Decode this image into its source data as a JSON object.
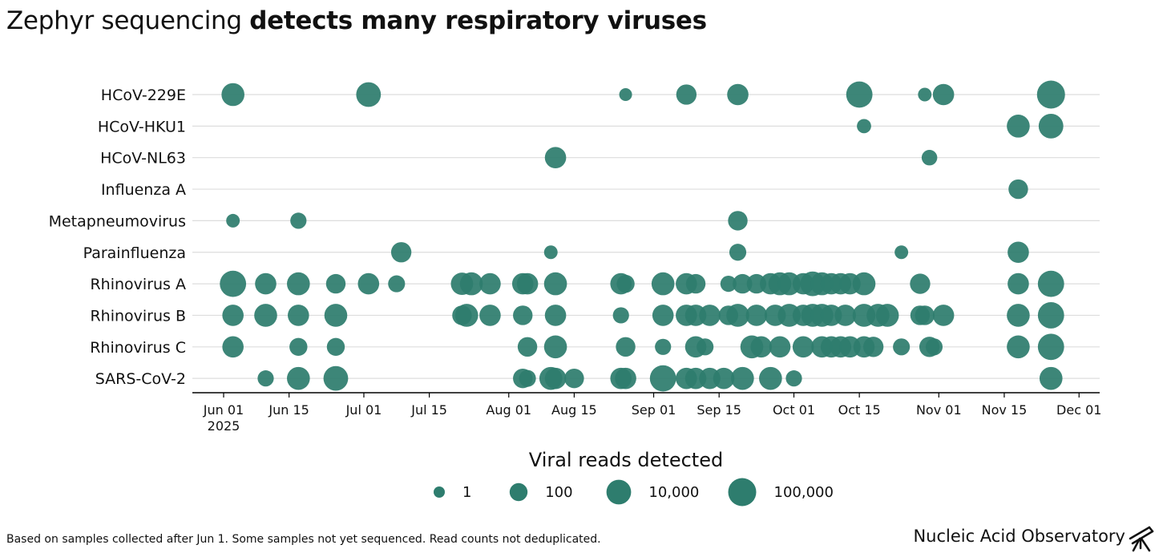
{
  "title": {
    "regular": "Zephyr sequencing",
    "bold": "detects many respiratory viruses"
  },
  "footnote": "Based on samples collected after Jun 1. Some samples not yet sequenced. Read counts not deduplicated.",
  "brand": "Nucleic Acid Observatory",
  "colors": {
    "dot": "#2e7d6e",
    "grid": "#dddddd",
    "axis": "#000000"
  },
  "chart_data": {
    "type": "scatter",
    "title": "Zephyr sequencing detects many respiratory viruses",
    "xlabel": "",
    "ylabel": "",
    "x_unit": "days since Jun 01 2025",
    "xlim": [
      -5,
      184
    ],
    "x_ticks": [
      {
        "day": 0,
        "label": "Jun 01",
        "sub": "2025"
      },
      {
        "day": 14,
        "label": "Jun 15"
      },
      {
        "day": 30,
        "label": "Jul 01"
      },
      {
        "day": 44,
        "label": "Jul 15"
      },
      {
        "day": 61,
        "label": "Aug 01"
      },
      {
        "day": 75,
        "label": "Aug 15"
      },
      {
        "day": 92,
        "label": "Sep 01"
      },
      {
        "day": 106,
        "label": "Sep 15"
      },
      {
        "day": 122,
        "label": "Oct 01"
      },
      {
        "day": 136,
        "label": "Oct 15"
      },
      {
        "day": 153,
        "label": "Nov 01"
      },
      {
        "day": 167,
        "label": "Nov 15"
      },
      {
        "day": 183,
        "label": "Dec 01"
      }
    ],
    "categories": [
      "HCoV-229E",
      "HCoV-HKU1",
      "HCoV-NL63",
      "Influenza A",
      "Metapneumovirus",
      "Parainfluenza",
      "Rhinovirus A",
      "Rhinovirus B",
      "Rhinovirus C",
      "SARS-CoV-2"
    ],
    "size_legend": {
      "title": "Viral reads detected",
      "entries": [
        {
          "label": "1",
          "value": 1
        },
        {
          "label": "100",
          "value": 100
        },
        {
          "label": "10,000",
          "value": 10000
        },
        {
          "label": "100,000",
          "value": 100000
        }
      ]
    },
    "series": [
      {
        "name": "HCoV-229E",
        "points": [
          [
            2,
            3000
          ],
          [
            31,
            10000
          ],
          [
            86,
            3
          ],
          [
            99,
            500
          ],
          [
            110,
            1000
          ],
          [
            136,
            30000
          ],
          [
            150,
            5
          ],
          [
            154,
            1000
          ],
          [
            177,
            100000
          ]
        ]
      },
      {
        "name": "HCoV-HKU1",
        "points": [
          [
            137,
            8
          ],
          [
            170,
            3000
          ],
          [
            177,
            10000
          ]
        ]
      },
      {
        "name": "HCoV-NL63",
        "points": [
          [
            71,
            1000
          ],
          [
            151,
            20
          ]
        ]
      },
      {
        "name": "Influenza A",
        "points": [
          [
            170,
            300
          ]
        ]
      },
      {
        "name": "Metapneumovirus",
        "points": [
          [
            2,
            5
          ],
          [
            16,
            30
          ],
          [
            110,
            300
          ]
        ]
      },
      {
        "name": "Parainfluenza",
        "points": [
          [
            38,
            500
          ],
          [
            70,
            5
          ],
          [
            110,
            50
          ],
          [
            145,
            5
          ],
          [
            170,
            1000
          ]
        ]
      },
      {
        "name": "Rhinovirus A",
        "points": [
          [
            2,
            30000
          ],
          [
            9,
            1000
          ],
          [
            16,
            3000
          ],
          [
            24,
            300
          ],
          [
            31,
            1000
          ],
          [
            37,
            50
          ],
          [
            51,
            2000
          ],
          [
            53,
            3000
          ],
          [
            57,
            1000
          ],
          [
            64,
            1000
          ],
          [
            65,
            1000
          ],
          [
            71,
            3000
          ],
          [
            85,
            1000
          ],
          [
            86,
            100
          ],
          [
            94,
            3000
          ],
          [
            99,
            1000
          ],
          [
            101,
            300
          ],
          [
            108,
            30
          ],
          [
            111,
            300
          ],
          [
            114,
            300
          ],
          [
            117,
            1000
          ],
          [
            119,
            3000
          ],
          [
            121,
            3000
          ],
          [
            124,
            1000
          ],
          [
            126,
            10000
          ],
          [
            128,
            3000
          ],
          [
            130,
            1000
          ],
          [
            132,
            1000
          ],
          [
            134,
            1000
          ],
          [
            137,
            3000
          ],
          [
            149,
            500
          ],
          [
            170,
            1000
          ],
          [
            177,
            30000
          ]
        ]
      },
      {
        "name": "Rhinovirus B",
        "points": [
          [
            2,
            1000
          ],
          [
            9,
            3000
          ],
          [
            16,
            1000
          ],
          [
            24,
            3000
          ],
          [
            51,
            300
          ],
          [
            52,
            3000
          ],
          [
            57,
            1000
          ],
          [
            64,
            300
          ],
          [
            71,
            1000
          ],
          [
            85,
            30
          ],
          [
            94,
            1000
          ],
          [
            99,
            1000
          ],
          [
            101,
            1000
          ],
          [
            104,
            1000
          ],
          [
            108,
            300
          ],
          [
            110,
            3000
          ],
          [
            114,
            1000
          ],
          [
            118,
            1000
          ],
          [
            121,
            3000
          ],
          [
            124,
            1000
          ],
          [
            126,
            3000
          ],
          [
            128,
            3000
          ],
          [
            130,
            1000
          ],
          [
            133,
            1000
          ],
          [
            137,
            3000
          ],
          [
            140,
            3000
          ],
          [
            142,
            3000
          ],
          [
            149,
            300
          ],
          [
            150,
            300
          ],
          [
            154,
            1000
          ],
          [
            170,
            3000
          ],
          [
            177,
            30000
          ]
        ]
      },
      {
        "name": "Rhinovirus C",
        "points": [
          [
            2,
            1000
          ],
          [
            16,
            100
          ],
          [
            24,
            100
          ],
          [
            65,
            300
          ],
          [
            71,
            3000
          ],
          [
            86,
            300
          ],
          [
            94,
            30
          ],
          [
            101,
            1000
          ],
          [
            103,
            50
          ],
          [
            113,
            3000
          ],
          [
            115,
            1000
          ],
          [
            119,
            1000
          ],
          [
            124,
            1000
          ],
          [
            128,
            1000
          ],
          [
            130,
            1000
          ],
          [
            132,
            1000
          ],
          [
            134,
            1000
          ],
          [
            137,
            1000
          ],
          [
            139,
            500
          ],
          [
            145,
            50
          ],
          [
            151,
            500
          ],
          [
            152,
            50
          ],
          [
            170,
            3000
          ],
          [
            177,
            30000
          ]
        ]
      },
      {
        "name": "SARS-CoV-2",
        "points": [
          [
            9,
            30
          ],
          [
            16,
            3000
          ],
          [
            24,
            10000
          ],
          [
            64,
            300
          ],
          [
            65,
            50
          ],
          [
            70,
            3000
          ],
          [
            71,
            1000
          ],
          [
            75,
            300
          ],
          [
            85,
            1000
          ],
          [
            86,
            1000
          ],
          [
            94,
            30000
          ],
          [
            99,
            1000
          ],
          [
            101,
            1000
          ],
          [
            104,
            1000
          ],
          [
            107,
            1000
          ],
          [
            111,
            3000
          ],
          [
            117,
            3000
          ],
          [
            122,
            30
          ],
          [
            177,
            3000
          ]
        ]
      }
    ]
  }
}
